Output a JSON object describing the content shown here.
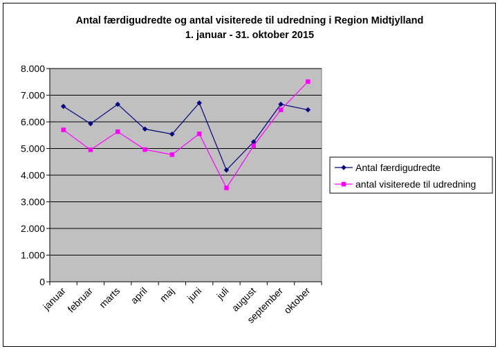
{
  "chart_data": {
    "type": "line",
    "title": "Antal færdigudredte og antal visiterede til udredning i Region Midtjylland",
    "subtitle": "1. januar - 31. oktober 2015",
    "categories": [
      "januar",
      "februar",
      "marts",
      "april",
      "maj",
      "juni",
      "juli",
      "august",
      "september",
      "oktober"
    ],
    "series": [
      {
        "name": "Antal færdigudredte",
        "color": "#000080",
        "marker": "diamond",
        "values": [
          6580,
          5930,
          6660,
          5730,
          5540,
          6710,
          4190,
          5250,
          6660,
          6450
        ]
      },
      {
        "name": "antal visiterede til udredning",
        "color": "#ff00ff",
        "marker": "square",
        "values": [
          5700,
          4950,
          5630,
          4960,
          4770,
          5550,
          3520,
          5100,
          6450,
          7510
        ]
      }
    ],
    "ylim": [
      0,
      8000
    ],
    "yticks": [
      "0",
      "1.000",
      "2.000",
      "3.000",
      "4.000",
      "5.000",
      "6.000",
      "7.000",
      "8.000"
    ],
    "xlabel": "",
    "ylabel": "",
    "grid": "horizontal",
    "plot_background": "#c0c0c0",
    "legend_position": "right"
  }
}
